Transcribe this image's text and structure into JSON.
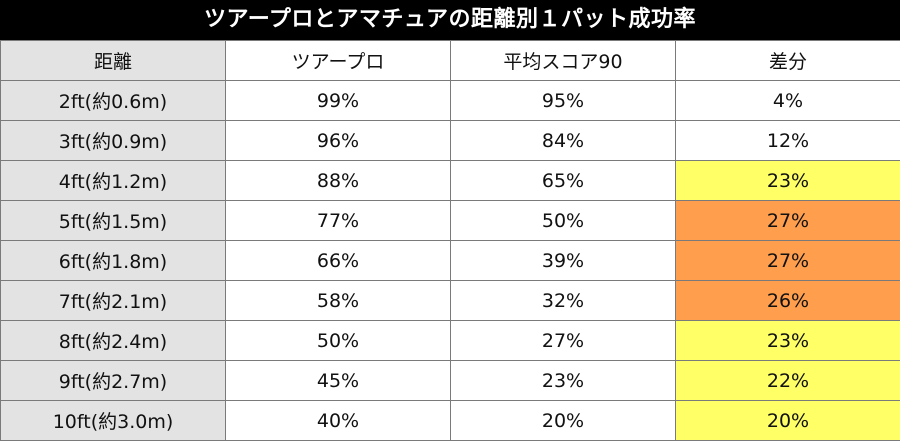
{
  "title": "ツアープロとアマチュアの距離別１パット成功率",
  "headers": [
    "距離",
    "ツアープロ",
    "平均スコア90",
    "差分"
  ],
  "rows": [
    {
      "distance": "2ft(約0.6m)",
      "pro": "99%",
      "amateur": "95%",
      "diff": "4%",
      "highlight": "none"
    },
    {
      "distance": "3ft(約0.9m)",
      "pro": "96%",
      "amateur": "84%",
      "diff": "12%",
      "highlight": "none"
    },
    {
      "distance": "4ft(約1.2m)",
      "pro": "88%",
      "amateur": "65%",
      "diff": "23%",
      "highlight": "yellow"
    },
    {
      "distance": "5ft(約1.5m)",
      "pro": "77%",
      "amateur": "50%",
      "diff": "27%",
      "highlight": "orange"
    },
    {
      "distance": "6ft(約1.8m)",
      "pro": "66%",
      "amateur": "39%",
      "diff": "27%",
      "highlight": "orange"
    },
    {
      "distance": "7ft(約2.1m)",
      "pro": "58%",
      "amateur": "32%",
      "diff": "26%",
      "highlight": "orange"
    },
    {
      "distance": "8ft(約2.4m)",
      "pro": "50%",
      "amateur": "27%",
      "diff": "23%",
      "highlight": "yellow"
    },
    {
      "distance": "9ft(約2.7m)",
      "pro": "45%",
      "amateur": "23%",
      "diff": "22%",
      "highlight": "yellow"
    },
    {
      "distance": "10ft(約3.0m)",
      "pro": "40%",
      "amateur": "20%",
      "diff": "20%",
      "highlight": "yellow"
    }
  ],
  "colors": {
    "yellow": "#ffff66",
    "orange": "#ff9f4d",
    "title_bg": "#000000",
    "label_bg": "#e3e3e3"
  }
}
